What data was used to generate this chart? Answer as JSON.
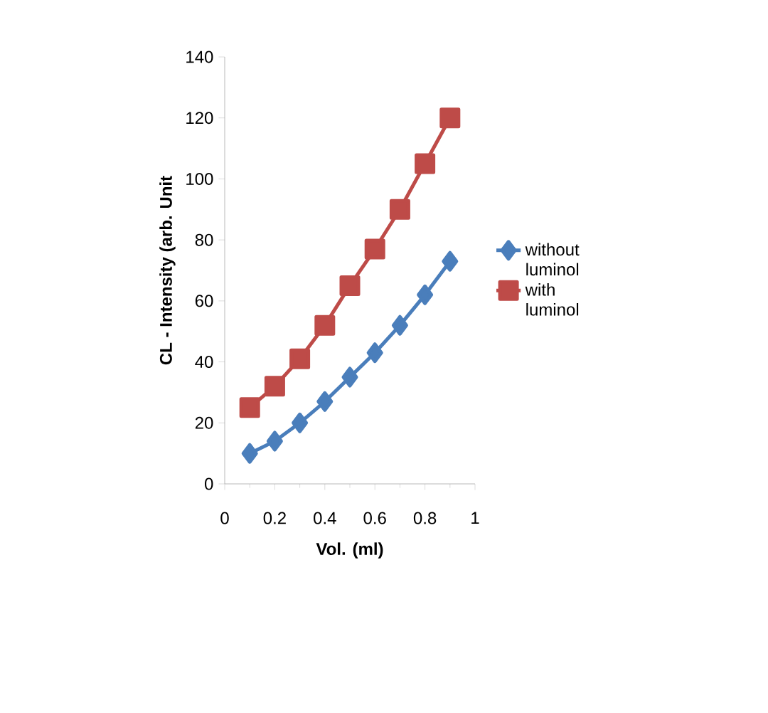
{
  "chart_data": {
    "type": "line",
    "xlabel": "Vol. (ml)",
    "ylabel": "CL - Intensity (arb. Unit",
    "x": [
      0.1,
      0.2,
      0.3,
      0.4,
      0.5,
      0.6,
      0.7,
      0.8,
      0.9
    ],
    "series": [
      {
        "name": "without luminol",
        "color": "#4a7ebb",
        "marker": "diamond",
        "values": [
          10,
          14,
          20,
          27,
          35,
          43,
          52,
          62,
          73
        ]
      },
      {
        "name": "with luminol",
        "color": "#be4b48",
        "marker": "square",
        "values": [
          25,
          32,
          41,
          52,
          65,
          77,
          90,
          105,
          120
        ]
      }
    ],
    "xlim": [
      0,
      1
    ],
    "xticks": [
      0,
      0.2,
      0.4,
      0.6,
      0.8,
      1
    ],
    "ylim": [
      0,
      140
    ],
    "yticks": [
      0,
      20,
      40,
      60,
      80,
      100,
      120,
      140
    ],
    "legend": "right",
    "grid": false,
    "line_style": "solid"
  }
}
